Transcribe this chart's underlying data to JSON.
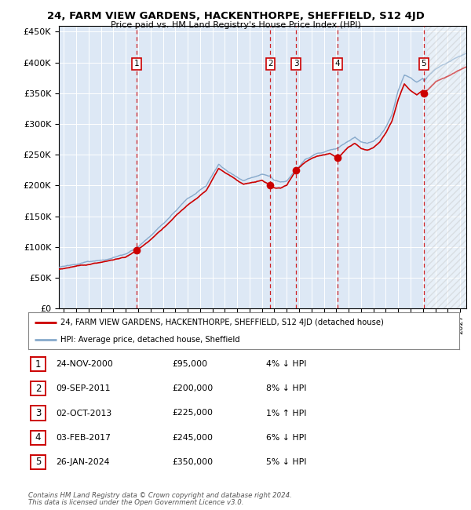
{
  "title": "24, FARM VIEW GARDENS, HACKENTHORPE, SHEFFIELD, S12 4JD",
  "subtitle": "Price paid vs. HM Land Registry's House Price Index (HPI)",
  "footer1": "Contains HM Land Registry data © Crown copyright and database right 2024.",
  "footer2": "This data is licensed under the Open Government Licence v3.0.",
  "legend_label_red": "24, FARM VIEW GARDENS, HACKENTHORPE, SHEFFIELD, S12 4JD (detached house)",
  "legend_label_blue": "HPI: Average price, detached house, Sheffield",
  "transactions": [
    {
      "id": 1,
      "date_x": 2000.9,
      "price": 95000
    },
    {
      "id": 2,
      "date_x": 2011.68,
      "price": 200000
    },
    {
      "id": 3,
      "date_x": 2013.75,
      "price": 225000
    },
    {
      "id": 4,
      "date_x": 2017.09,
      "price": 245000
    },
    {
      "id": 5,
      "date_x": 2024.07,
      "price": 350000
    }
  ],
  "table_rows": [
    {
      "id": 1,
      "date_str": "24-NOV-2000",
      "price_str": "£95,000",
      "hpi_str": "4% ↓ HPI"
    },
    {
      "id": 2,
      "date_str": "09-SEP-2011",
      "price_str": "£200,000",
      "hpi_str": "8% ↓ HPI"
    },
    {
      "id": 3,
      "date_str": "02-OCT-2013",
      "price_str": "£225,000",
      "hpi_str": "1% ↑ HPI"
    },
    {
      "id": 4,
      "date_str": "03-FEB-2017",
      "price_str": "£245,000",
      "hpi_str": "6% ↓ HPI"
    },
    {
      "id": 5,
      "date_str": "26-JAN-2024",
      "price_str": "£350,000",
      "hpi_str": "5% ↓ HPI"
    }
  ],
  "ylim": [
    0,
    460000
  ],
  "yticks": [
    0,
    50000,
    100000,
    150000,
    200000,
    250000,
    300000,
    350000,
    400000,
    450000
  ],
  "xlim_start": 1994.6,
  "xlim_end": 2027.5,
  "hatch_start": 2024.3,
  "red_line_color": "#cc0000",
  "blue_line_color": "#88aacc",
  "plot_bg": "#dde8f5",
  "hpi_anchors": [
    [
      1994.6,
      67000
    ],
    [
      1995.5,
      70000
    ],
    [
      1997.0,
      76000
    ],
    [
      1998.5,
      80000
    ],
    [
      2000.0,
      88000
    ],
    [
      2000.9,
      99000
    ],
    [
      2002.0,
      118000
    ],
    [
      2003.5,
      148000
    ],
    [
      2005.0,
      178000
    ],
    [
      2006.5,
      200000
    ],
    [
      2007.5,
      235000
    ],
    [
      2008.5,
      220000
    ],
    [
      2009.5,
      208000
    ],
    [
      2010.5,
      215000
    ],
    [
      2011.0,
      218000
    ],
    [
      2011.68,
      216000
    ],
    [
      2012.0,
      208000
    ],
    [
      2012.5,
      205000
    ],
    [
      2013.0,
      207000
    ],
    [
      2013.75,
      225000
    ],
    [
      2014.5,
      242000
    ],
    [
      2015.5,
      252000
    ],
    [
      2016.5,
      258000
    ],
    [
      2017.09,
      261000
    ],
    [
      2018.0,
      272000
    ],
    [
      2018.5,
      278000
    ],
    [
      2019.0,
      270000
    ],
    [
      2019.5,
      268000
    ],
    [
      2020.0,
      272000
    ],
    [
      2020.5,
      280000
    ],
    [
      2021.0,
      295000
    ],
    [
      2021.5,
      315000
    ],
    [
      2022.0,
      355000
    ],
    [
      2022.5,
      380000
    ],
    [
      2023.0,
      375000
    ],
    [
      2023.5,
      368000
    ],
    [
      2024.0,
      375000
    ],
    [
      2024.07,
      370000
    ],
    [
      2024.5,
      380000
    ],
    [
      2025.0,
      390000
    ],
    [
      2026.0,
      400000
    ],
    [
      2027.0,
      410000
    ],
    [
      2027.5,
      415000
    ]
  ],
  "red_anchors": [
    [
      1994.6,
      64000
    ],
    [
      1995.5,
      67000
    ],
    [
      1997.0,
      72000
    ],
    [
      1998.5,
      77000
    ],
    [
      2000.0,
      84000
    ],
    [
      2000.9,
      95000
    ],
    [
      2002.0,
      112000
    ],
    [
      2003.5,
      140000
    ],
    [
      2005.0,
      168000
    ],
    [
      2006.5,
      192000
    ],
    [
      2007.5,
      228000
    ],
    [
      2008.5,
      215000
    ],
    [
      2009.5,
      202000
    ],
    [
      2010.5,
      205000
    ],
    [
      2011.0,
      208000
    ],
    [
      2011.68,
      200000
    ],
    [
      2012.0,
      197000
    ],
    [
      2012.5,
      196000
    ],
    [
      2013.0,
      200000
    ],
    [
      2013.75,
      225000
    ],
    [
      2014.5,
      238000
    ],
    [
      2015.5,
      248000
    ],
    [
      2016.5,
      252000
    ],
    [
      2017.09,
      245000
    ],
    [
      2018.0,
      262000
    ],
    [
      2018.5,
      268000
    ],
    [
      2019.0,
      260000
    ],
    [
      2019.5,
      258000
    ],
    [
      2020.0,
      262000
    ],
    [
      2020.5,
      270000
    ],
    [
      2021.0,
      285000
    ],
    [
      2021.5,
      305000
    ],
    [
      2022.0,
      340000
    ],
    [
      2022.5,
      365000
    ],
    [
      2023.0,
      355000
    ],
    [
      2023.5,
      348000
    ],
    [
      2024.0,
      355000
    ],
    [
      2024.07,
      350000
    ],
    [
      2024.5,
      358000
    ],
    [
      2025.0,
      368000
    ],
    [
      2026.0,
      378000
    ],
    [
      2027.0,
      388000
    ],
    [
      2027.5,
      393000
    ]
  ]
}
